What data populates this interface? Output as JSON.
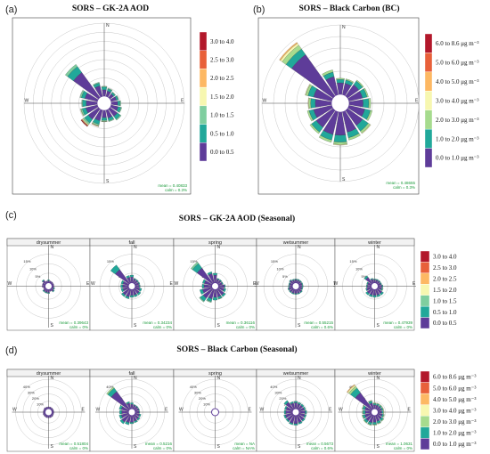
{
  "panels": {
    "a": {
      "label": "(a)",
      "title": "SORS – GK-2A AOD"
    },
    "b": {
      "label": "(b)",
      "title": "SORS – Black Carbon (BC)"
    },
    "c": {
      "label": "(c)",
      "title": "SORS – GK-2A AOD (Seasonal)"
    },
    "d": {
      "label": "(d)",
      "title": "SORS – Black Carbon (Seasonal)"
    }
  },
  "colors": {
    "aod": [
      "#5e3c99",
      "#21a89a",
      "#7fce9f",
      "#f7f7b0",
      "#fdb863",
      "#e8603a",
      "#b2182b"
    ],
    "bc": [
      "#5e3c99",
      "#21a89a",
      "#a6db8e",
      "#f7f7b0",
      "#fdb863",
      "#e8603a",
      "#b2182b"
    ]
  },
  "compass": {
    "n": "N",
    "e": "E",
    "s": "S",
    "w": "W"
  },
  "chart_data": [
    {
      "id": "a",
      "type": "windrose",
      "title": "SORS – GK-2A AOD",
      "bins": [
        "0.0 to 0.5",
        "0.5 to 1.0",
        "1.0 to 1.5",
        "1.5 to 2.0",
        "2.0 to 2.5",
        "2.5 to 3.0",
        "3.0 to 4.0"
      ],
      "ring_labels": [
        "5%",
        "10%",
        "15%",
        "20%",
        "25%",
        "30%",
        "35%",
        "40%"
      ],
      "ring_max": 40,
      "directions": [
        0,
        22.5,
        45,
        67.5,
        90,
        112.5,
        135,
        157.5,
        180,
        202.5,
        225,
        247.5,
        270,
        292.5,
        315,
        337.5
      ],
      "series": [
        [
          3.5,
          1.5,
          0.5
        ],
        [
          3,
          1.2,
          0.4
        ],
        [
          2.5,
          1,
          0.3
        ],
        [
          3,
          1,
          0.3
        ],
        [
          3.5,
          1.2,
          0.5
        ],
        [
          4,
          1.5,
          0.5
        ],
        [
          5,
          2,
          0.6
        ],
        [
          4.5,
          1.5,
          0.5
        ],
        [
          4,
          1.5,
          0.6,
          0.2
        ],
        [
          6,
          2,
          0.8,
          0.3,
          0.2
        ],
        [
          7,
          2.5,
          1,
          0.5,
          0.3,
          0.3,
          0.3
        ],
        [
          6.5,
          2,
          0.8,
          0.3
        ],
        [
          6,
          2,
          0.5
        ],
        [
          7,
          2,
          0.8
        ],
        [
          17,
          4,
          1.5
        ],
        [
          6,
          1.5,
          0.5
        ]
      ],
      "mean": "mean = 0.40833",
      "calm": "calm = 0.3%"
    },
    {
      "id": "b",
      "type": "windrose",
      "title": "SORS – Black Carbon (BC)",
      "bins": [
        "0.0 to 1.0 μg m⁻³",
        "1.0 to 2.0 μg m⁻³",
        "2.0 to 3.0 μg m⁻³",
        "3.0 to 4.0 μg m⁻³",
        "4.0 to 5.0 μg m⁻³",
        "5.0 to 6.0 μg m⁻³",
        "6.0 to 8.6 μg m⁻³"
      ],
      "ring_labels": [
        "5%",
        "10%",
        "15%",
        "20%",
        "25%",
        "30%"
      ],
      "ring_max": 30,
      "directions": [
        0,
        22.5,
        45,
        67.5,
        90,
        112.5,
        135,
        157.5,
        180,
        202.5,
        225,
        247.5,
        270,
        292.5,
        315,
        337.5
      ],
      "series": [
        [
          5,
          1.5,
          0.5
        ],
        [
          5,
          1.5,
          0.5
        ],
        [
          6,
          2,
          0.5
        ],
        [
          6,
          2,
          0.6
        ],
        [
          6,
          2.5,
          0.8
        ],
        [
          7,
          2.5,
          0.8
        ],
        [
          8,
          3,
          1,
          0.3
        ],
        [
          9,
          2.5,
          1
        ],
        [
          10,
          3,
          1,
          0.3
        ],
        [
          10,
          2.5,
          1
        ],
        [
          9,
          2.5,
          0.8
        ],
        [
          8,
          2,
          0.8
        ],
        [
          7,
          2,
          0.8,
          0.3
        ],
        [
          8,
          2.5,
          1,
          0.3
        ],
        [
          22,
          3,
          2,
          1,
          0.5
        ],
        [
          8,
          2,
          1
        ]
      ],
      "mean": "mean = 0.48655",
      "calm = ": "",
      "calm": "calm = 0.3%"
    },
    {
      "id": "c",
      "type": "windrose-seasonal",
      "title": "SORS – GK-2A AOD (Seasonal)",
      "ring_labels": [
        "5%",
        "10%",
        "15%"
      ],
      "ring_max": 20,
      "bins": [
        "0.0 to 0.5",
        "0.5 to 1.0",
        "1.0 to 1.5",
        "1.5 to 2.0",
        "2.0 to 2.5",
        "2.5 to 3.0",
        "3.0 to 4.0"
      ],
      "seasons": [
        {
          "name": "drysummer",
          "mean": "mean = 0.39643",
          "calm": "calm = 0%",
          "series": [
            [
              1,
              0.5
            ],
            [
              1
            ],
            [
              1
            ],
            [
              1
            ],
            [
              1
            ],
            [
              1,
              0.5
            ],
            [
              1.5,
              0.5
            ],
            [
              1
            ],
            [
              1.5,
              0.5
            ],
            [
              1.5,
              0.5
            ],
            [
              1.5,
              0.5
            ],
            [
              1
            ],
            [
              1.5
            ],
            [
              1.5
            ],
            [
              2,
              0.5
            ],
            [
              1
            ]
          ]
        },
        {
          "name": "fall",
          "mean": "mean = 0.34234",
          "calm": "calm = 0%",
          "series": [
            [
              3,
              1
            ],
            [
              2,
              0.5
            ],
            [
              2,
              0.5
            ],
            [
              2,
              0.5
            ],
            [
              2,
              0.5
            ],
            [
              2.5,
              1
            ],
            [
              3,
              1
            ],
            [
              3,
              1
            ],
            [
              3,
              1
            ],
            [
              4,
              1
            ],
            [
              4,
              1
            ],
            [
              3,
              1
            ],
            [
              3,
              1
            ],
            [
              3,
              1
            ],
            [
              9,
              3
            ],
            [
              3,
              1
            ]
          ]
        },
        {
          "name": "spring",
          "mean": "mean = 0.36116",
          "calm": "calm = 0%",
          "series": [
            [
              4,
              1
            ],
            [
              2,
              0.5
            ],
            [
              2,
              0.5
            ],
            [
              2,
              0.5
            ],
            [
              3,
              0.5
            ],
            [
              3,
              1
            ],
            [
              4,
              1
            ],
            [
              4,
              1,
              0.3
            ],
            [
              4,
              1.5
            ],
            [
              5,
              1.5,
              0.5
            ],
            [
              6,
              2,
              0.5
            ],
            [
              5,
              1.5
            ],
            [
              4,
              1
            ],
            [
              4,
              1
            ],
            [
              10,
              3,
              1
            ],
            [
              5,
              1
            ]
          ]
        },
        {
          "name": "wetsummer",
          "mean": "mean = 0.55215",
          "calm": "calm = 0.6%",
          "series": [
            [
              1.5,
              0.5
            ],
            [
              1.5,
              0.5
            ],
            [
              1.5,
              0.5
            ],
            [
              1.5,
              0.5
            ],
            [
              1.5,
              0.5
            ],
            [
              1.5,
              0.5
            ],
            [
              2,
              0.5
            ],
            [
              2,
              0.5
            ],
            [
              2,
              0.5
            ],
            [
              2,
              0.5
            ],
            [
              2,
              0.5
            ],
            [
              2,
              0.5
            ],
            [
              1.5,
              0.5
            ],
            [
              1.5,
              0.5
            ],
            [
              2,
              0.5
            ],
            [
              1.5,
              0.5
            ]
          ]
        },
        {
          "name": "winter",
          "mean": "mean = 0.47939",
          "calm": "calm = 0%",
          "series": [
            [
              1.5,
              0.5
            ],
            [
              1.5,
              0.5
            ],
            [
              1.5,
              0.5
            ],
            [
              1.5,
              0.5
            ],
            [
              2,
              0.5
            ],
            [
              2,
              0.5,
              0.3
            ],
            [
              3,
              1
            ],
            [
              3,
              1
            ],
            [
              3,
              1
            ],
            [
              3,
              1
            ],
            [
              3,
              1
            ],
            [
              2.5,
              0.5
            ],
            [
              2,
              0.5
            ],
            [
              2,
              0.5
            ],
            [
              4,
              1
            ],
            [
              2,
              0.5
            ]
          ]
        }
      ]
    },
    {
      "id": "d",
      "type": "windrose-seasonal",
      "title": "SORS – Black Carbon (Seasonal)",
      "ring_labels": [
        "10%",
        "20%",
        "30%",
        "40%"
      ],
      "ring_max": 45,
      "bins": [
        "0.0 to 1.0 μg m⁻³",
        "1.0 to 2.0 μg m⁻³",
        "2.0 to 3.0 μg m⁻³",
        "3.0 to 4.0 μg m⁻³",
        "4.0 to 5.0 μg m⁻³",
        "5.0 to 6.0 μg m⁻³",
        "6.0 to 8.6 μg m⁻³"
      ],
      "seasons": [
        {
          "name": "drysummer",
          "mean": "mean = 0.51804",
          "calm": "calm = 0%",
          "series": [
            [
              2.5
            ],
            [
              2.5
            ],
            [
              2.5
            ],
            [
              2.5
            ],
            [
              2.5
            ],
            [
              2.5
            ],
            [
              3
            ],
            [
              3
            ],
            [
              3
            ],
            [
              3
            ],
            [
              3
            ],
            [
              3
            ],
            [
              2.5
            ],
            [
              2.5
            ],
            [
              3
            ],
            [
              2.5
            ]
          ]
        },
        {
          "name": "fall",
          "mean": "mean = 0.5216",
          "calm": "calm = 0%",
          "series": [
            [
              6,
              2
            ],
            [
              5,
              1
            ],
            [
              5,
              1
            ],
            [
              5,
              1
            ],
            [
              5,
              1
            ],
            [
              6,
              2
            ],
            [
              7,
              2
            ],
            [
              8,
              2
            ],
            [
              9,
              2
            ],
            [
              10,
              3
            ],
            [
              12,
              3
            ],
            [
              10,
              3
            ],
            [
              9,
              3
            ],
            [
              10,
              3
            ],
            [
              30,
              6,
              2
            ],
            [
              8,
              2
            ]
          ]
        },
        {
          "name": "spring",
          "mean": "mean = NA",
          "calm": "calm = NA%",
          "series": []
        },
        {
          "name": "wetsummer",
          "mean": "mean = 0.5673",
          "calm": "calm = 0.6%",
          "series": [
            [
              8,
              2
            ],
            [
              7,
              2
            ],
            [
              7,
              2
            ],
            [
              7,
              2
            ],
            [
              8,
              2
            ],
            [
              8,
              2
            ],
            [
              9,
              2
            ],
            [
              10,
              2
            ],
            [
              11,
              2
            ],
            [
              11,
              2
            ],
            [
              10,
              2
            ],
            [
              10,
              2
            ],
            [
              9,
              2
            ],
            [
              9,
              2
            ],
            [
              12,
              3
            ],
            [
              8,
              2
            ]
          ]
        },
        {
          "name": "winter",
          "mean": "mean = 1.0631",
          "calm": "calm = 0%",
          "series": [
            [
              5,
              2,
              1
            ],
            [
              5,
              2,
              1
            ],
            [
              5,
              2,
              1
            ],
            [
              5,
              2,
              1
            ],
            [
              5,
              2,
              1
            ],
            [
              6,
              2,
              1
            ],
            [
              7,
              3,
              1
            ],
            [
              8,
              3,
              1
            ],
            [
              9,
              3,
              1
            ],
            [
              10,
              3,
              1
            ],
            [
              10,
              3,
              1
            ],
            [
              9,
              3,
              1
            ],
            [
              8,
              3,
              1
            ],
            [
              9,
              3,
              1
            ],
            [
              28,
              8,
              3,
              2,
              1
            ],
            [
              8,
              3,
              1
            ]
          ]
        }
      ]
    }
  ]
}
